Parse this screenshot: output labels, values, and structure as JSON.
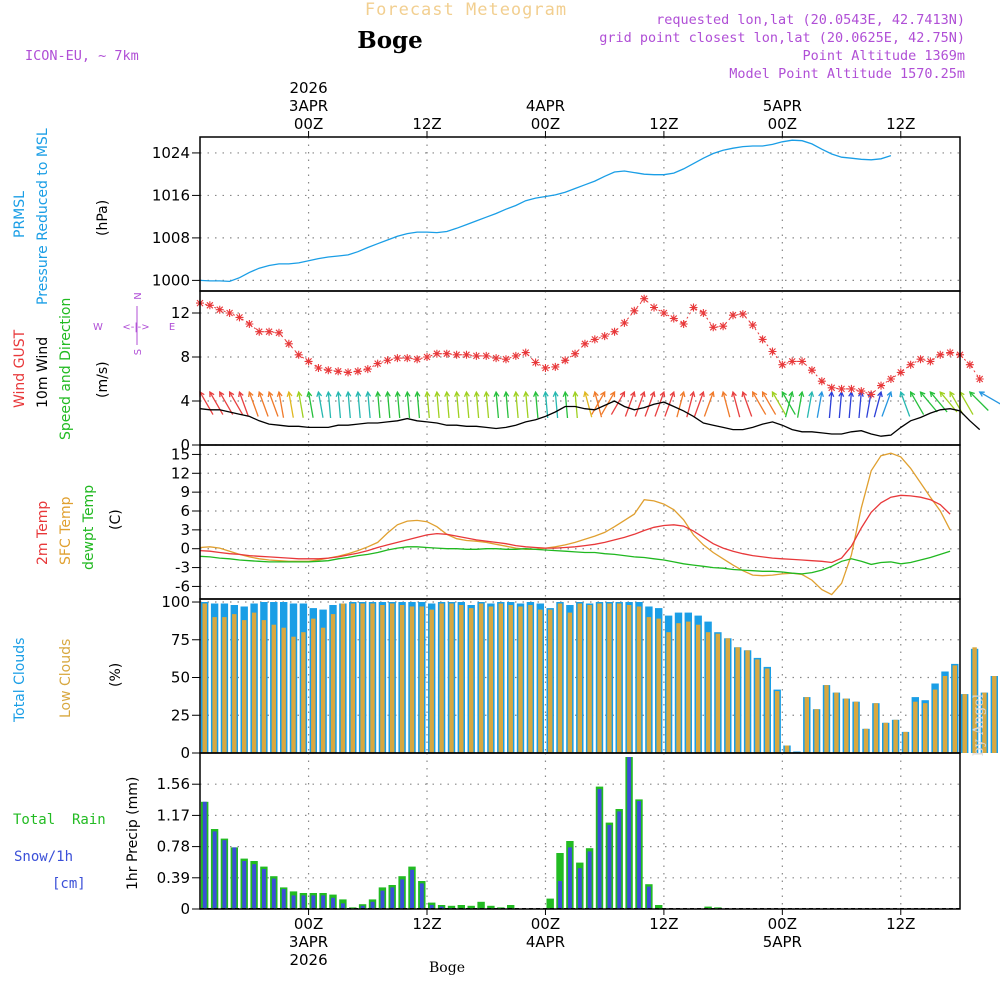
{
  "header": {
    "product": "Forecast Meteogram",
    "location": "Boge",
    "model": "ICON-EU, ~ 7km",
    "requested": "requested lon,lat (20.0543E, 42.7413N)",
    "gridpoint": "grid point closest lon,lat (20.0625E, 42.75N)",
    "point_alt": "Point Altitude 1369m",
    "model_alt": "Model Point Altitude 1570.25m",
    "footer": "Boge",
    "credit": "by Angel"
  },
  "colors": {
    "pressure": "#1a9ee6",
    "gust": "#e8383a",
    "wind10": "#000000",
    "dir": "#22bb22",
    "t2m": "#e8383a",
    "tsfc": "#e0a030",
    "dewpt": "#20b820",
    "total_cloud": "#1a9ee6",
    "low_cloud": "#d8a840",
    "rain": "#22bb22",
    "snow": "#3a4fd8",
    "meta": "#b04fd6",
    "product": "#f2cf90",
    "grid": "#888888"
  },
  "time_axis": {
    "n_hours": 79,
    "top_labels": [
      {
        "hour": 22,
        "lines": [
          "2026",
          "3APR",
          "00Z"
        ]
      },
      {
        "hour": 34,
        "lines": [
          "12Z"
        ]
      },
      {
        "hour": 46,
        "lines": [
          "4APR",
          "00Z"
        ]
      },
      {
        "hour": 58,
        "lines": [
          "12Z"
        ]
      },
      {
        "hour": 70,
        "lines": [
          "5APR",
          "00Z"
        ]
      },
      {
        "hour": 82,
        "lines": [
          "12Z"
        ]
      }
    ],
    "bottom_labels": [
      {
        "hour": 22,
        "lines": [
          "00Z",
          "3APR",
          "2026"
        ]
      },
      {
        "hour": 34,
        "lines": [
          "12Z"
        ]
      },
      {
        "hour": 46,
        "lines": [
          "00Z",
          "4APR"
        ]
      },
      {
        "hour": 58,
        "lines": [
          "12Z"
        ]
      },
      {
        "hour": 70,
        "lines": [
          "00Z",
          "5APR"
        ]
      },
      {
        "hour": 82,
        "lines": [
          "12Z"
        ]
      }
    ]
  },
  "chart_data": [
    {
      "type": "line",
      "id": "pressure",
      "title": "PRMSL Pressure Reduced to MSL",
      "label_lines": [
        "PRMSL",
        "Pressure Reduced to MSL"
      ],
      "unit": "(hPa)",
      "ylim": [
        998,
        1027
      ],
      "yticks": [
        1000,
        1008,
        1016,
        1024
      ],
      "x_start": 11,
      "x_step": 1,
      "values": [
        1000.0,
        999.9,
        999.9,
        999.8,
        1000.5,
        1001.5,
        1002.3,
        1002.8,
        1003.1,
        1003.1,
        1003.3,
        1003.7,
        1004.1,
        1004.4,
        1004.6,
        1004.8,
        1005.4,
        1006.2,
        1006.9,
        1007.6,
        1008.3,
        1008.8,
        1009.1,
        1009.1,
        1009.0,
        1009.2,
        1009.8,
        1010.5,
        1011.2,
        1011.9,
        1012.6,
        1013.4,
        1014.1,
        1015.0,
        1015.5,
        1015.8,
        1016.1,
        1016.6,
        1017.3,
        1018.0,
        1018.7,
        1019.6,
        1020.4,
        1020.6,
        1020.3,
        1020.0,
        1019.9,
        1019.9,
        1020.2,
        1021.0,
        1022.0,
        1023.0,
        1023.9,
        1024.5,
        1024.9,
        1025.2,
        1025.3,
        1025.3,
        1025.6,
        1026.1,
        1026.4,
        1026.3,
        1025.7,
        1024.7,
        1023.8,
        1023.2,
        1023.0,
        1022.8,
        1022.7,
        1022.9,
        1023.5
      ]
    },
    {
      "type": "line",
      "id": "wind",
      "title": "Wind GUST / 10m Wind Speed and Direction",
      "label_lines": [
        "Wind GUST",
        "10m Wind",
        "Speed and Direction"
      ],
      "unit": "(m/s)",
      "compass": {
        "n": "N",
        "s": "S",
        "e": "E",
        "w": "W",
        "arrow": "<-|->"
      },
      "ylim": [
        0,
        14
      ],
      "yticks": [
        0,
        4,
        8,
        12
      ],
      "x_start": 11,
      "x_step": 1,
      "gust": [
        12.9,
        12.7,
        12.3,
        12.0,
        11.6,
        11.0,
        10.3,
        10.3,
        10.2,
        9.2,
        8.2,
        7.6,
        7.0,
        6.8,
        6.7,
        6.6,
        6.7,
        6.9,
        7.4,
        7.7,
        7.9,
        7.9,
        7.8,
        8.0,
        8.3,
        8.3,
        8.2,
        8.2,
        8.1,
        8.1,
        7.9,
        7.8,
        8.1,
        8.4,
        7.5,
        7.0,
        7.1,
        7.7,
        8.3,
        9.2,
        9.6,
        9.9,
        10.3,
        11.1,
        12.2,
        13.3,
        12.5,
        12.0,
        11.5,
        11.0,
        12.5,
        12.0,
        10.7,
        10.8,
        11.8,
        11.9,
        10.9,
        9.6,
        8.5,
        7.3,
        7.6,
        7.6,
        6.8,
        5.8,
        5.2,
        5.1,
        5.1,
        4.9,
        4.6,
        5.4,
        6.0,
        6.6,
        7.3,
        7.8,
        7.6,
        8.2,
        8.4,
        8.2,
        7.3,
        6.0
      ],
      "wind10": [
        3.3,
        3.2,
        3.2,
        3.0,
        2.8,
        2.6,
        2.2,
        1.9,
        1.8,
        1.7,
        1.7,
        1.6,
        1.6,
        1.6,
        1.8,
        1.8,
        1.9,
        2.0,
        2.0,
        2.1,
        2.2,
        2.4,
        2.2,
        2.1,
        2.0,
        1.8,
        1.8,
        1.7,
        1.7,
        1.6,
        1.5,
        1.6,
        1.8,
        2.1,
        2.3,
        2.6,
        3.0,
        3.5,
        3.5,
        3.3,
        3.2,
        3.6,
        4.0,
        3.5,
        3.2,
        3.4,
        3.7,
        3.9,
        3.5,
        3.1,
        2.6,
        2.0,
        1.8,
        1.6,
        1.4,
        1.4,
        1.6,
        1.9,
        2.1,
        1.8,
        1.4,
        1.2,
        1.2,
        1.1,
        1.0,
        1.0,
        1.2,
        1.3,
        1.0,
        0.8,
        0.9,
        1.6,
        2.2,
        2.5,
        2.9,
        3.2,
        3.3,
        3.1,
        2.2,
        1.4
      ],
      "direction_deg": [
        330,
        330,
        330,
        330,
        340,
        340,
        340,
        340,
        350,
        350,
        350,
        350,
        350,
        355,
        355,
        355,
        355,
        355,
        355,
        355,
        355,
        355,
        355,
        355,
        355,
        355,
        355,
        355,
        355,
        355,
        355,
        355,
        355,
        355,
        355,
        355,
        355,
        355,
        355,
        345,
        345,
        30,
        30,
        30,
        20,
        20,
        20,
        20,
        20,
        15,
        15,
        20,
        20,
        345,
        345,
        340,
        330,
        330,
        330,
        330,
        15,
        10,
        10,
        10,
        5,
        5,
        5,
        5,
        10,
        15,
        20,
        340,
        330,
        320,
        320,
        320,
        330,
        330,
        315,
        300
      ]
    },
    {
      "type": "line",
      "id": "temperature",
      "title": "2m Temp / SFC Temp / dewpt Temp",
      "label_lines": [
        "2m Temp",
        "SFC Temp",
        "dewpt Temp"
      ],
      "unit": "(C)",
      "ylim": [
        -8,
        16.5
      ],
      "yticks": [
        -6,
        -3,
        0,
        3,
        6,
        9,
        12,
        15
      ],
      "x_start": 11,
      "x_step": 1,
      "t2m": [
        -0.3,
        -0.4,
        -0.6,
        -0.8,
        -0.9,
        -1.1,
        -1.2,
        -1.3,
        -1.4,
        -1.5,
        -1.6,
        -1.6,
        -1.6,
        -1.5,
        -1.3,
        -1.0,
        -0.7,
        -0.3,
        0.2,
        0.6,
        1.0,
        1.4,
        1.8,
        2.2,
        2.4,
        2.3,
        2.0,
        1.7,
        1.4,
        1.2,
        1.0,
        0.8,
        0.5,
        0.3,
        0.2,
        0.1,
        0.1,
        0.2,
        0.3,
        0.5,
        0.7,
        1.0,
        1.4,
        1.8,
        2.3,
        2.9,
        3.4,
        3.7,
        3.8,
        3.6,
        2.8,
        1.8,
        0.8,
        0.1,
        -0.4,
        -0.8,
        -1.1,
        -1.3,
        -1.5,
        -1.6,
        -1.7,
        -1.8,
        -1.9,
        -2.0,
        -2.2,
        -1.5,
        0.4,
        3.3,
        5.8,
        7.3,
        8.2,
        8.5,
        8.4,
        8.2,
        7.8,
        7.0,
        5.5
      ],
      "tsfc": [
        0.2,
        0.3,
        0.1,
        -0.4,
        -0.9,
        -1.3,
        -1.6,
        -1.8,
        -1.9,
        -2.0,
        -2.0,
        -2.0,
        -1.8,
        -1.5,
        -1.2,
        -0.8,
        -0.3,
        0.3,
        1.0,
        2.5,
        3.8,
        4.4,
        4.5,
        4.3,
        3.5,
        2.3,
        1.6,
        1.3,
        1.2,
        1.0,
        0.7,
        0.4,
        0.1,
        -0.1,
        -0.1,
        0.1,
        0.3,
        0.6,
        1.0,
        1.5,
        2.0,
        2.6,
        3.5,
        4.5,
        5.5,
        7.8,
        7.6,
        7.1,
        6.2,
        4.6,
        2.2,
        0.6,
        -0.6,
        -1.6,
        -2.6,
        -3.5,
        -4.2,
        -4.3,
        -4.2,
        -4.0,
        -3.9,
        -4.1,
        -5.0,
        -6.5,
        -7.3,
        -5.5,
        -1.0,
        6.5,
        12.4,
        14.8,
        15.2,
        14.6,
        12.8,
        10.5,
        8.2,
        6.0,
        3.0
      ],
      "dewpt": [
        -1.2,
        -1.3,
        -1.5,
        -1.6,
        -1.8,
        -1.9,
        -2.0,
        -2.1,
        -2.1,
        -2.1,
        -2.1,
        -2.1,
        -2.0,
        -1.9,
        -1.6,
        -1.4,
        -1.1,
        -0.9,
        -0.6,
        -0.2,
        0.1,
        0.3,
        0.3,
        0.2,
        0.1,
        0.0,
        0.0,
        -0.1,
        -0.1,
        0.0,
        0.0,
        -0.1,
        -0.1,
        0.0,
        -0.1,
        -0.2,
        -0.3,
        -0.4,
        -0.5,
        -0.6,
        -0.6,
        -0.8,
        -0.9,
        -1.1,
        -1.3,
        -1.4,
        -1.6,
        -1.8,
        -2.1,
        -2.4,
        -2.6,
        -2.8,
        -3.0,
        -3.1,
        -3.3,
        -3.4,
        -3.5,
        -3.6,
        -3.6,
        -3.7,
        -3.9,
        -4.0,
        -3.8,
        -3.4,
        -2.8,
        -2.0,
        -1.6,
        -2.0,
        -2.5,
        -2.2,
        -2.1,
        -2.4,
        -2.2,
        -1.8,
        -1.4,
        -0.9,
        -0.4
      ]
    },
    {
      "type": "bar",
      "id": "clouds",
      "title": "Total Clouds / Low Clouds",
      "label_lines": [
        "Total Clouds",
        "Low Clouds"
      ],
      "unit": "(%)",
      "ylim": [
        0,
        102
      ],
      "yticks": [
        0,
        25,
        50,
        75,
        100
      ],
      "x_start": 11,
      "x_step": 1,
      "series": [
        {
          "name": "Total Clouds",
          "values": [
            100,
            99,
            99,
            98,
            97,
            99,
            100,
            100,
            100,
            99,
            99,
            96,
            95,
            98,
            99,
            100,
            100,
            100,
            100,
            100,
            100,
            100,
            100,
            99,
            100,
            100,
            100,
            98,
            100,
            99,
            100,
            100,
            99,
            100,
            99,
            96,
            100,
            98,
            100,
            99,
            100,
            100,
            100,
            100,
            100,
            97,
            96,
            91,
            93,
            93,
            91,
            87,
            80,
            76,
            70,
            68,
            63,
            57,
            42,
            5,
            1,
            37,
            29,
            45,
            40,
            36,
            34,
            16,
            33,
            20,
            22,
            14,
            37,
            35,
            46,
            54,
            59,
            39,
            69,
            40,
            51
          ]
        },
        {
          "name": "Low Clouds",
          "values": [
            99,
            90,
            90,
            92,
            88,
            93,
            88,
            85,
            83,
            77,
            80,
            89,
            83,
            92,
            99,
            99,
            99,
            99,
            98,
            99,
            98,
            97,
            97,
            95,
            99,
            99,
            98,
            96,
            99,
            97,
            99,
            98,
            97,
            98,
            95,
            95,
            99,
            93,
            99,
            98,
            99,
            99,
            99,
            98,
            97,
            90,
            89,
            80,
            86,
            87,
            85,
            80,
            79,
            76,
            70,
            68,
            62,
            56,
            41,
            5,
            0,
            37,
            29,
            45,
            40,
            36,
            34,
            16,
            33,
            20,
            22,
            14,
            34,
            33,
            42,
            51,
            58,
            39,
            70,
            40,
            51
          ]
        }
      ]
    },
    {
      "type": "bar",
      "id": "precip",
      "title": "1hr Precip (mm)",
      "label_lines": [
        "Total  Rain",
        "Snow/1h",
        "[cm]"
      ],
      "unit": "1hr Precip (mm)",
      "ylim": [
        0,
        1.95
      ],
      "yticks": [
        0,
        0.39,
        0.78,
        1.17,
        1.56
      ],
      "x_start": 11,
      "x_step": 1,
      "series": [
        {
          "name": "Total Rain",
          "values": [
            1.34,
            1.0,
            0.88,
            0.77,
            0.63,
            0.6,
            0.53,
            0.41,
            0.27,
            0.22,
            0.2,
            0.2,
            0.2,
            0.18,
            0.12,
            0.02,
            0.06,
            0.12,
            0.27,
            0.3,
            0.41,
            0.53,
            0.35,
            0.08,
            0.05,
            0.04,
            0.05,
            0.04,
            0.09,
            0.04,
            0.02,
            0.05,
            0.0,
            0.0,
            0.0,
            0.13,
            0.7,
            0.85,
            0.58,
            0.76,
            1.53,
            1.08,
            1.25,
            1.9,
            1.37,
            0.31,
            0.05,
            0.0,
            0.0,
            0.0,
            0.0,
            0.03,
            0.02
          ]
        },
        {
          "name": "Snow/1h [cm]",
          "values": [
            1.34,
            0.97,
            0.86,
            0.77,
            0.6,
            0.56,
            0.5,
            0.38,
            0.25,
            0.17,
            0.17,
            0.17,
            0.17,
            0.14,
            0.07,
            0.0,
            0.04,
            0.09,
            0.23,
            0.27,
            0.37,
            0.49,
            0.32,
            0.05,
            0.03,
            0.01,
            0.01,
            0.0,
            0.01,
            0.0,
            0.0,
            0.0,
            0.0,
            0.0,
            0.0,
            0.0,
            0.35,
            0.77,
            0.51,
            0.72,
            1.5,
            1.05,
            1.22,
            1.9,
            1.35,
            0.28,
            0.0,
            0.0,
            0.0,
            0.0,
            0.0,
            0.0,
            0.0
          ]
        }
      ]
    }
  ]
}
